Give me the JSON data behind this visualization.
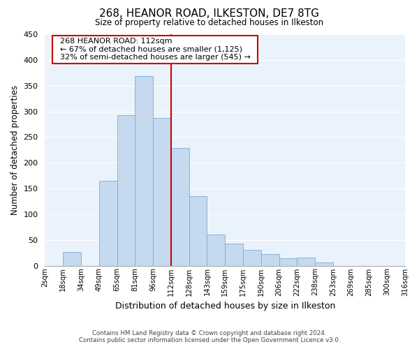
{
  "title": "268, HEANOR ROAD, ILKESTON, DE7 8TG",
  "subtitle": "Size of property relative to detached houses in Ilkeston",
  "xlabel": "Distribution of detached houses by size in Ilkeston",
  "ylabel": "Number of detached properties",
  "bin_labels": [
    "2sqm",
    "18sqm",
    "34sqm",
    "49sqm",
    "65sqm",
    "81sqm",
    "96sqm",
    "112sqm",
    "128sqm",
    "143sqm",
    "159sqm",
    "175sqm",
    "190sqm",
    "206sqm",
    "222sqm",
    "238sqm",
    "253sqm",
    "269sqm",
    "285sqm",
    "300sqm",
    "316sqm"
  ],
  "bar_values": [
    0,
    27,
    0,
    165,
    293,
    368,
    287,
    229,
    135,
    61,
    43,
    31,
    23,
    14,
    16,
    6,
    0,
    0,
    0,
    0
  ],
  "bar_color": "#c5d9ef",
  "bar_edge_color": "#7aaed4",
  "vline_color": "#cc0000",
  "vline_x_index": 7,
  "ylim": [
    0,
    450
  ],
  "yticks": [
    0,
    50,
    100,
    150,
    200,
    250,
    300,
    350,
    400,
    450
  ],
  "annotation_title": "268 HEANOR ROAD: 112sqm",
  "annotation_line1": "← 67% of detached houses are smaller (1,125)",
  "annotation_line2": "32% of semi-detached houses are larger (545) →",
  "annotation_box_edge_color": "#cc0000",
  "annotation_box_face_color": "#ffffff",
  "footer_line1": "Contains HM Land Registry data © Crown copyright and database right 2024.",
  "footer_line2": "Contains public sector information licensed under the Open Government Licence v3.0.",
  "background_color": "#ffffff",
  "plot_bg_color": "#eaf3fb",
  "grid_color": "#ffffff"
}
